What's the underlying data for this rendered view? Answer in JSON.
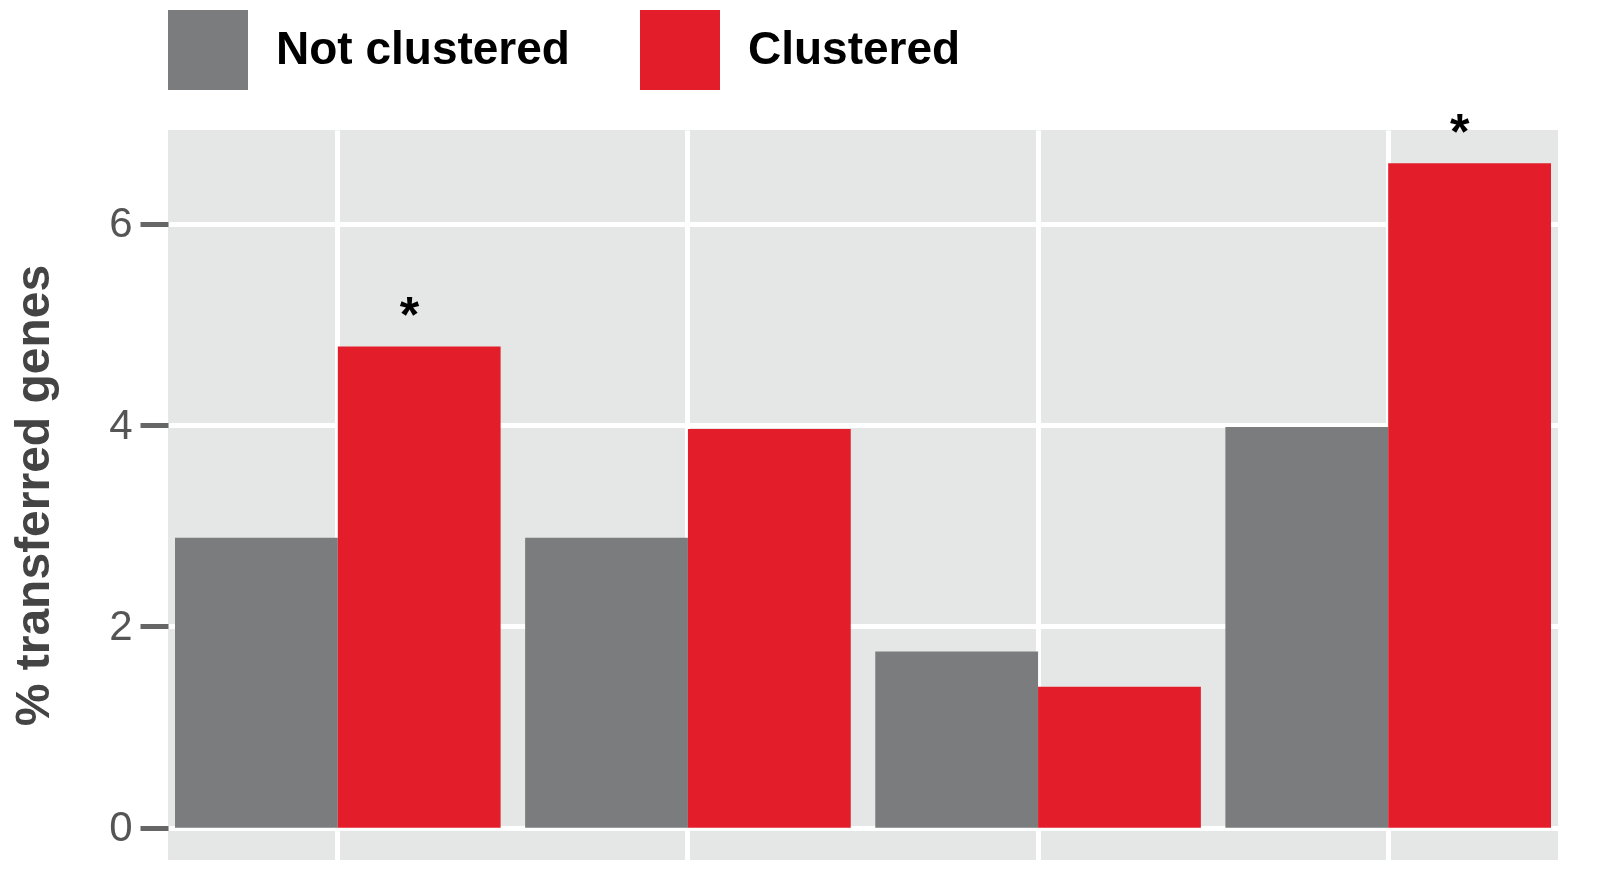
{
  "chart_data": {
    "type": "bar",
    "ylabel": "% transferred genes",
    "categories": [
      null,
      null,
      null,
      null
    ],
    "series": [
      {
        "name": "Not clustered",
        "color": "#7a7c7e",
        "values": [
          2.88,
          2.88,
          1.75,
          3.98
        ]
      },
      {
        "name": "Clustered",
        "color": "#e31e2a",
        "values": [
          4.78,
          3.96,
          1.4,
          6.6
        ]
      }
    ],
    "ylim": [
      -0.32,
      6.93
    ],
    "yticks": [
      0,
      2,
      4,
      6
    ],
    "grid": true,
    "legend": "top",
    "annotations": [
      {
        "text": "*",
        "y": 4.78
      },
      {
        "text": "*",
        "y": 6.6
      }
    ]
  }
}
